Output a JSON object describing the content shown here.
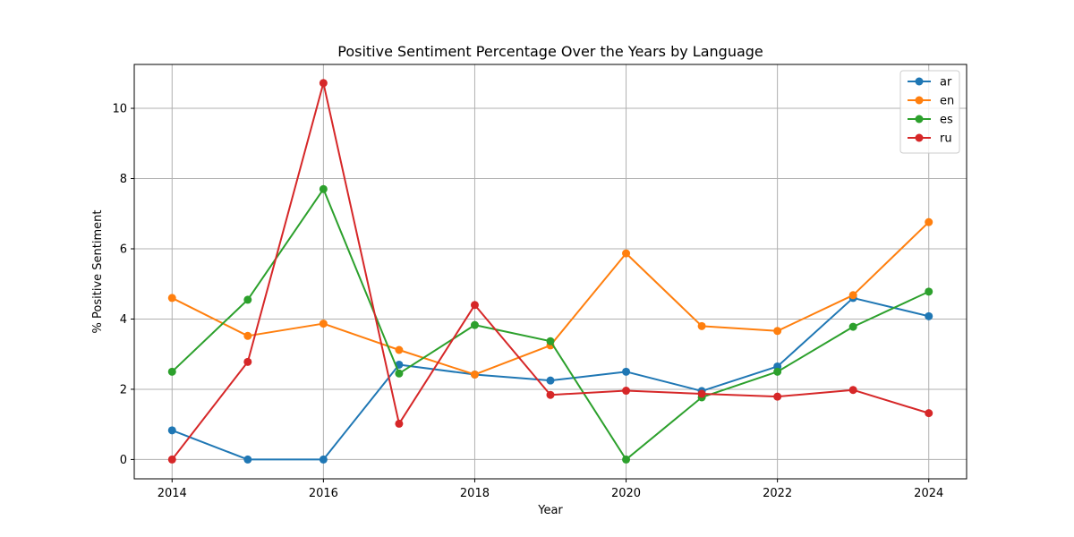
{
  "chart_data": {
    "type": "line",
    "title": "Positive Sentiment Percentage Over the Years by Language",
    "xlabel": "Year",
    "ylabel": "% Positive Sentiment",
    "x": [
      2014,
      2015,
      2016,
      2017,
      2018,
      2019,
      2020,
      2021,
      2022,
      2023,
      2024
    ],
    "xlim": [
      2013.5,
      2024.5
    ],
    "ylim": [
      -0.55,
      11.25
    ],
    "xticks": [
      2014,
      2016,
      2018,
      2020,
      2022,
      2024
    ],
    "yticks": [
      0,
      2,
      4,
      6,
      8,
      10
    ],
    "grid": true,
    "legend_position": "top-right",
    "series": [
      {
        "name": "ar",
        "color": "#1f77b4",
        "values": [
          0.83,
          0.0,
          0.0,
          2.7,
          2.42,
          2.25,
          2.5,
          1.95,
          2.65,
          4.6,
          4.08
        ]
      },
      {
        "name": "en",
        "color": "#ff7f0e",
        "values": [
          4.6,
          3.52,
          3.87,
          3.12,
          2.42,
          3.25,
          5.87,
          3.8,
          3.66,
          4.68,
          6.76
        ]
      },
      {
        "name": "es",
        "color": "#2ca02c",
        "values": [
          2.5,
          4.55,
          7.7,
          2.45,
          3.83,
          3.37,
          0.0,
          1.77,
          2.5,
          3.78,
          4.78
        ]
      },
      {
        "name": "ru",
        "color": "#d62728",
        "values": [
          0.0,
          2.78,
          10.72,
          1.02,
          4.4,
          1.84,
          1.96,
          1.87,
          1.79,
          1.98,
          1.32
        ]
      }
    ]
  }
}
